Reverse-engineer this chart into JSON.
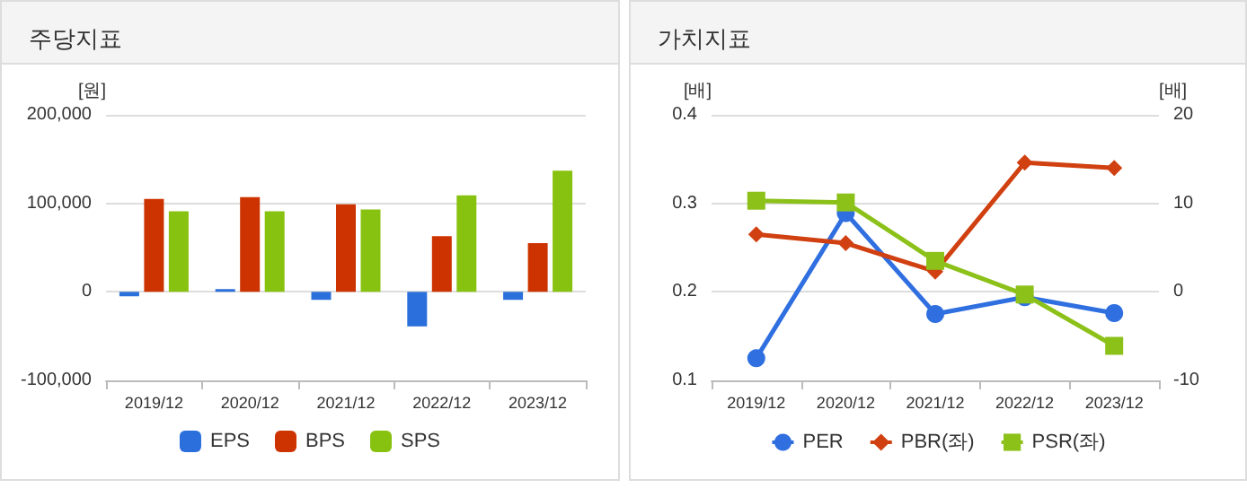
{
  "chart_data": [
    {
      "type": "bar",
      "title": "주당지표",
      "ylabel": "[원]",
      "categories": [
        "2019/12",
        "2020/12",
        "2021/12",
        "2022/12",
        "2023/12"
      ],
      "series": [
        {
          "name": "EPS",
          "color": "#2a6fdb",
          "values": [
            -5000,
            3000,
            -9000,
            -39000,
            -9000
          ]
        },
        {
          "name": "BPS",
          "color": "#cc3300",
          "values": [
            105000,
            107000,
            99000,
            63000,
            55000
          ]
        },
        {
          "name": "SPS",
          "color": "#88c210",
          "values": [
            91000,
            91000,
            93000,
            109000,
            137000
          ]
        }
      ],
      "ylim": [
        -100000,
        200000
      ],
      "yticks": [
        {
          "value": -100000,
          "label": "-100,000"
        },
        {
          "value": 0,
          "label": "0"
        },
        {
          "value": 100000,
          "label": "100,000"
        },
        {
          "value": 200000,
          "label": "200,000"
        }
      ],
      "grid": "y",
      "legend": "bottom"
    },
    {
      "type": "line",
      "title": "가치지표",
      "ylabel": "[배]",
      "y2label": "[배]",
      "categories": [
        "2019/12",
        "2020/12",
        "2021/12",
        "2022/12",
        "2023/12"
      ],
      "series": [
        {
          "name": "PER",
          "color": "#2f6fe0",
          "axis": "y2",
          "marker": "circle",
          "values": [
            -7.5,
            8.9,
            -2.5,
            -0.6,
            -2.4
          ]
        },
        {
          "name": "PBR(좌)",
          "color": "#d04010",
          "marker": "diamond",
          "values": [
            0.265,
            0.255,
            0.223,
            0.346,
            0.34
          ]
        },
        {
          "name": "PSR(좌)",
          "color": "#8cc11a",
          "marker": "square",
          "values": [
            0.303,
            0.301,
            0.235,
            0.197,
            0.139
          ]
        }
      ],
      "ylim": [
        0.1,
        0.4
      ],
      "yticks": [
        0.1,
        0.2,
        0.3,
        0.4
      ],
      "y2lim": [
        -10,
        20
      ],
      "y2ticks": [
        -10,
        0,
        10,
        20
      ],
      "grid": "y",
      "legend": "bottom",
      "line_style": "solid"
    }
  ]
}
